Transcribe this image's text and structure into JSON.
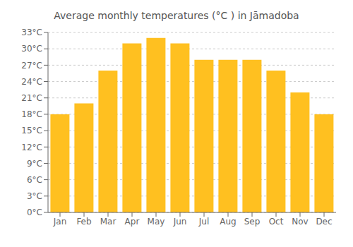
{
  "chart_data": {
    "type": "bar",
    "title": "Average monthly temperatures (°C ) in Jāmadoba",
    "categories": [
      "Jan",
      "Feb",
      "Mar",
      "Apr",
      "May",
      "Jun",
      "Jul",
      "Aug",
      "Sep",
      "Oct",
      "Nov",
      "Dec"
    ],
    "values": [
      18.0,
      20.0,
      26.0,
      31.0,
      32.0,
      31.0,
      28.0,
      28.0,
      28.0,
      26.0,
      22.0,
      18.0
    ],
    "color": "#FFC020",
    "ylim": [
      0,
      33
    ],
    "yticks": [
      {
        "value": 0,
        "label": "0°C"
      },
      {
        "value": 3,
        "label": "3°C"
      },
      {
        "value": 6,
        "label": "6°C"
      },
      {
        "value": 9,
        "label": "9°C"
      },
      {
        "value": 12,
        "label": "12°C"
      },
      {
        "value": 15,
        "label": "15°C"
      },
      {
        "value": 18,
        "label": "18°C"
      },
      {
        "value": 21,
        "label": "21°C"
      },
      {
        "value": 24,
        "label": "24°C"
      },
      {
        "value": 27,
        "label": "27°C"
      },
      {
        "value": 30,
        "label": "30°C"
      },
      {
        "value": 33,
        "label": "33°C"
      }
    ],
    "grid": true
  }
}
